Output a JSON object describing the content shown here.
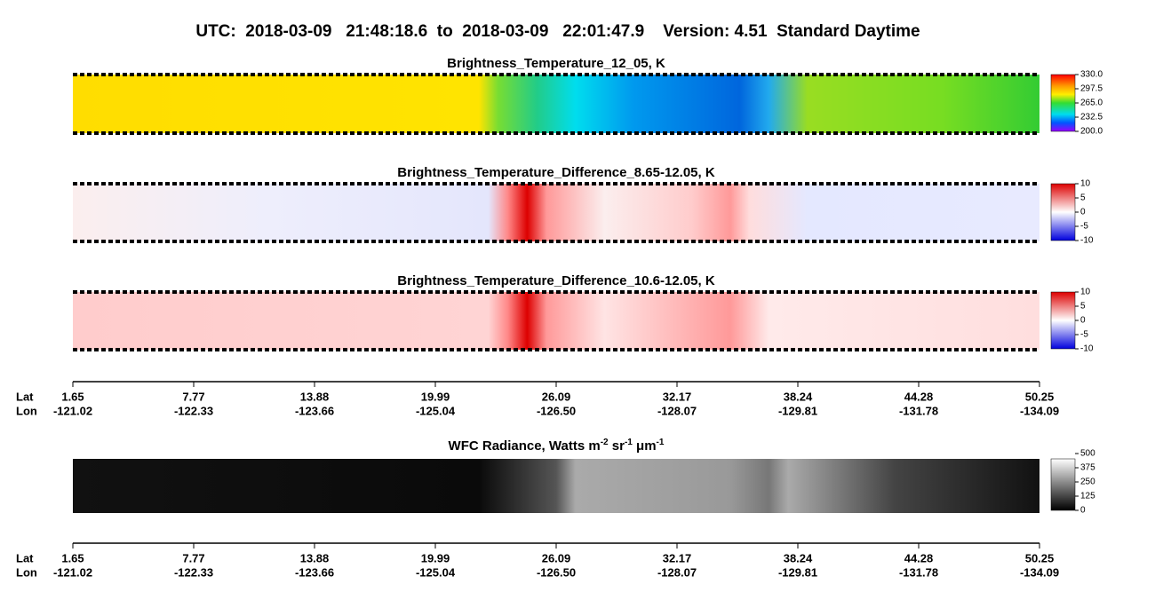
{
  "header": {
    "title": "UTC:  2018-03-09   21:48:18.6  to  2018-03-09   22:01:47.9    Version: 4.51  Standard Daytime"
  },
  "panels": [
    {
      "title": "Brightness_Temperature_12_05, K",
      "colorbar_ticks": [
        "330.0",
        "297.5",
        "265.0",
        "232.5",
        "200.0"
      ]
    },
    {
      "title": "Brightness_Temperature_Difference_8.65-12.05, K",
      "colorbar_ticks": [
        "10",
        "5",
        "0",
        "-5",
        "-10"
      ]
    },
    {
      "title": "Brightness_Temperature_Difference_10.6-12.05, K",
      "colorbar_ticks": [
        "10",
        "5",
        "0",
        "-5",
        "-10"
      ]
    },
    {
      "title_parts": [
        "WFC Radiance, Watts m",
        "-2",
        " sr",
        "-1",
        " μm",
        "-1"
      ],
      "colorbar_ticks": [
        "500",
        "375",
        "250",
        "125",
        "0"
      ]
    }
  ],
  "axes": [
    {
      "row_labels": [
        "Lat",
        "Lon"
      ],
      "ticks": [
        [
          "1.65",
          "-121.02"
        ],
        [
          "7.77",
          "-122.33"
        ],
        [
          "13.88",
          "-123.66"
        ],
        [
          "19.99",
          "-125.04"
        ],
        [
          "26.09",
          "-126.50"
        ],
        [
          "32.17",
          "-128.07"
        ],
        [
          "38.24",
          "-129.81"
        ],
        [
          "44.28",
          "-131.78"
        ],
        [
          "50.25",
          "-134.09"
        ]
      ]
    },
    {
      "row_labels": [
        "Lat",
        "Lon"
      ],
      "ticks": [
        [
          "1.65",
          "-121.02"
        ],
        [
          "7.77",
          "-122.33"
        ],
        [
          "13.88",
          "-123.66"
        ],
        [
          "19.99",
          "-125.04"
        ],
        [
          "26.09",
          "-126.50"
        ],
        [
          "32.17",
          "-128.07"
        ],
        [
          "38.24",
          "-129.81"
        ],
        [
          "44.28",
          "-131.78"
        ],
        [
          "50.25",
          "-134.09"
        ]
      ]
    }
  ]
}
